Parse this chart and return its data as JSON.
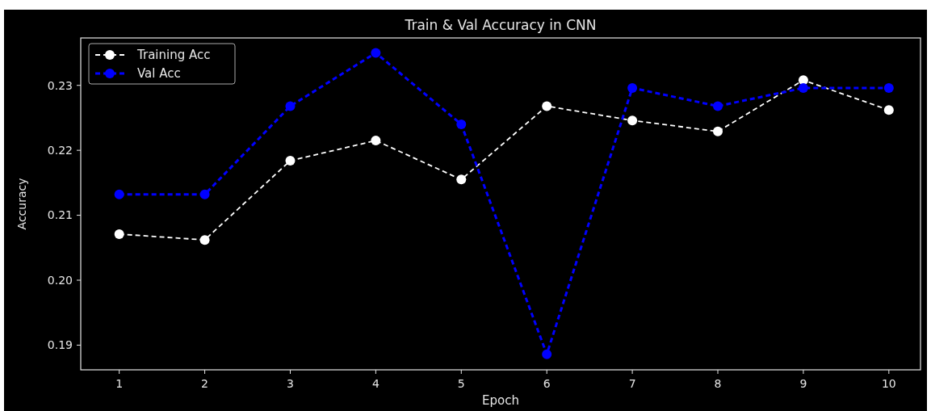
{
  "chart_data": {
    "type": "line",
    "title": "Train & Val Accuracy in CNN",
    "xlabel": "Epoch",
    "ylabel": "Accuracy",
    "x": [
      1,
      2,
      3,
      4,
      5,
      6,
      7,
      8,
      9,
      10
    ],
    "series": [
      {
        "name": "Training Acc",
        "color": "#ffffff",
        "values": [
          0.2071,
          0.2062,
          0.2184,
          0.2215,
          0.2155,
          0.2268,
          0.2246,
          0.2229,
          0.2308,
          0.2262
        ]
      },
      {
        "name": "Val Acc",
        "color": "#0000ff",
        "values": [
          0.2132,
          0.2132,
          0.2268,
          0.235,
          0.224,
          0.1886,
          0.2296,
          0.2268,
          0.2296,
          0.2296
        ]
      }
    ],
    "xlim": [
      0.55,
      10.37
    ],
    "ylim": [
      0.1862,
      0.2373
    ],
    "xticks": [
      1,
      2,
      3,
      4,
      5,
      6,
      7,
      8,
      9,
      10
    ],
    "yticks": [
      {
        "value": 0.19,
        "label": "0.19"
      },
      {
        "value": 0.2,
        "label": "0.20"
      },
      {
        "value": 0.21,
        "label": "0.21"
      },
      {
        "value": 0.22,
        "label": "0.22"
      },
      {
        "value": 0.23,
        "label": "0.23"
      }
    ],
    "legend": "top left",
    "marker": "circle",
    "line_style": "dashed",
    "grid": false
  }
}
